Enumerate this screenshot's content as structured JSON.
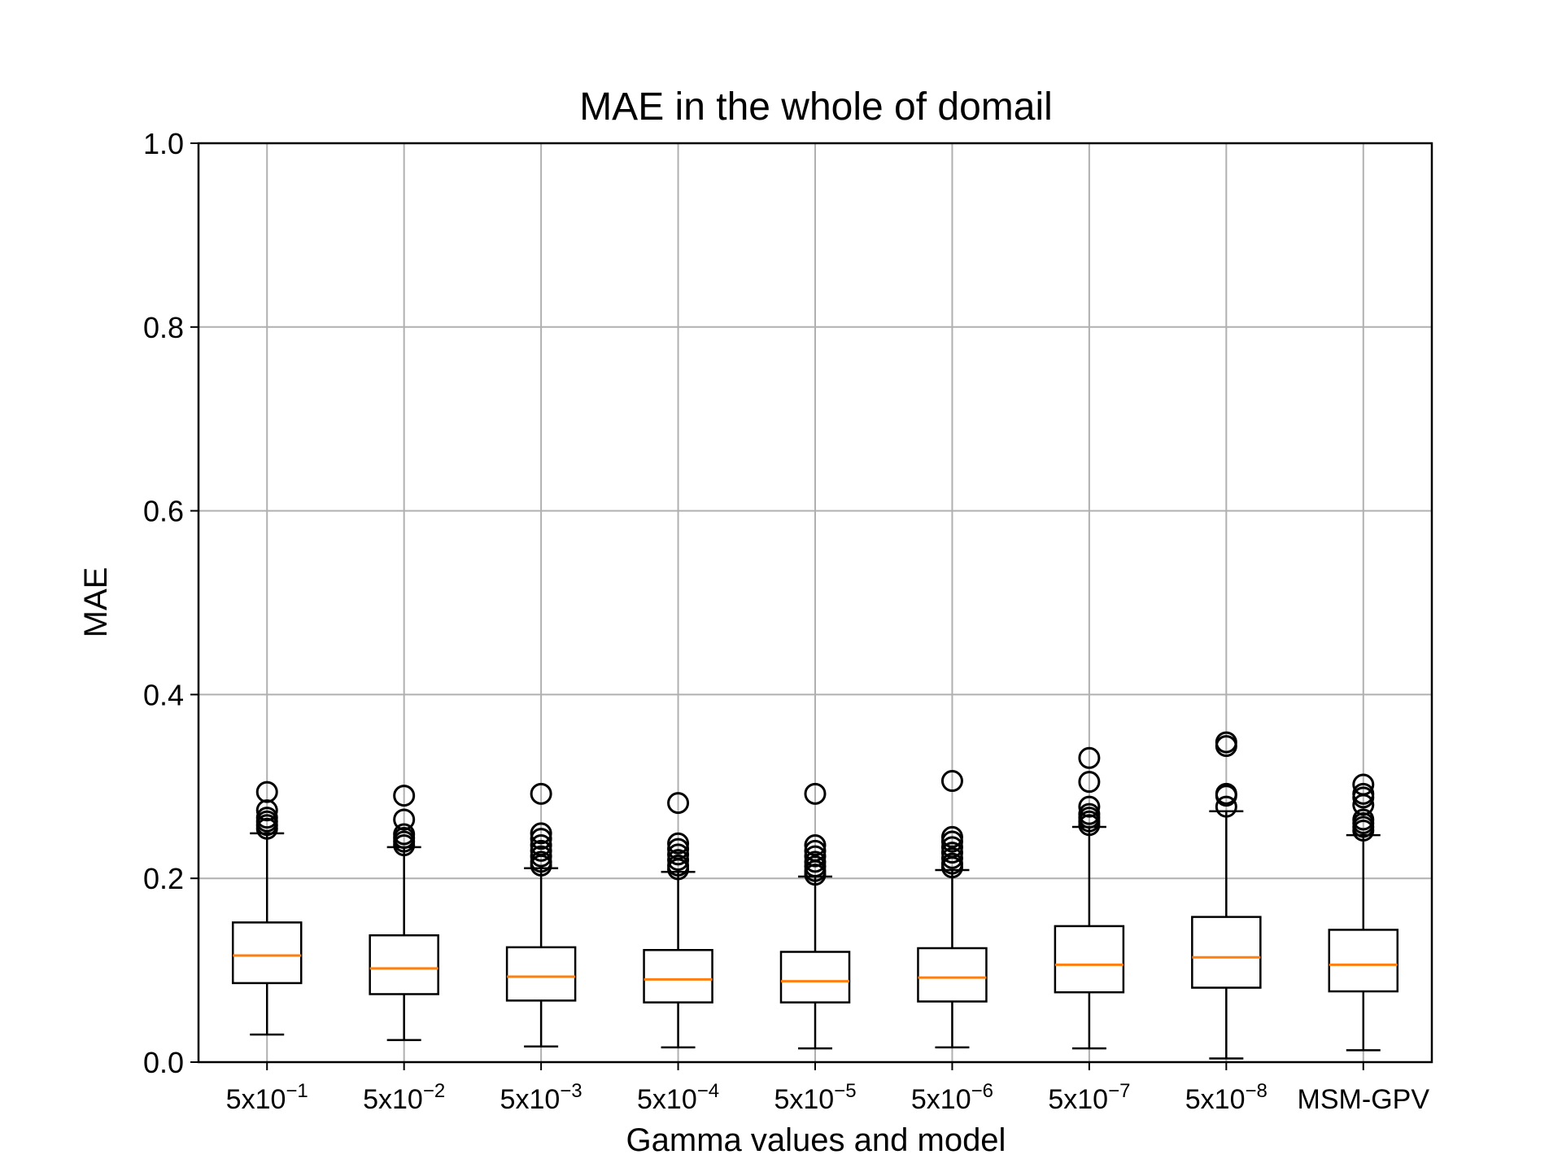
{
  "chart_data": {
    "type": "box",
    "title": "MAE in the whole of domail",
    "xlabel": "Gamma values and model",
    "ylabel": "MAE",
    "ylim": [
      0,
      1.0
    ],
    "yticks": [
      "0.0",
      "0.2",
      "0.4",
      "0.6",
      "0.8",
      "1.0"
    ],
    "grid": true,
    "legend": "none",
    "colors": {
      "box": "#000000",
      "median": "#ff7f0e",
      "grid": "#b0b0b0"
    },
    "categories": [
      {
        "label": "5x10",
        "exp": "−1"
      },
      {
        "label": "5x10",
        "exp": "−2"
      },
      {
        "label": "5x10",
        "exp": "−3"
      },
      {
        "label": "5x10",
        "exp": "−4"
      },
      {
        "label": "5x10",
        "exp": "−5"
      },
      {
        "label": "5x10",
        "exp": "−6"
      },
      {
        "label": "5x10",
        "exp": "−7"
      },
      {
        "label": "5x10",
        "exp": "−8"
      },
      {
        "label": "MSM-GPV",
        "exp": ""
      }
    ],
    "boxes": [
      {
        "whislo": 0.03,
        "q1": 0.086,
        "med": 0.116,
        "q3": 0.152,
        "whishi": 0.249,
        "fliers": [
          0.254,
          0.258,
          0.262,
          0.266,
          0.274,
          0.294
        ]
      },
      {
        "whislo": 0.024,
        "q1": 0.074,
        "med": 0.102,
        "q3": 0.138,
        "whishi": 0.234,
        "fliers": [
          0.236,
          0.24,
          0.244,
          0.248,
          0.264,
          0.29
        ]
      },
      {
        "whislo": 0.017,
        "q1": 0.067,
        "med": 0.093,
        "q3": 0.125,
        "whishi": 0.211,
        "fliers": [
          0.214,
          0.218,
          0.224,
          0.23,
          0.236,
          0.243,
          0.249,
          0.292
        ]
      },
      {
        "whislo": 0.016,
        "q1": 0.065,
        "med": 0.09,
        "q3": 0.122,
        "whishi": 0.207,
        "fliers": [
          0.21,
          0.214,
          0.22,
          0.226,
          0.232,
          0.238,
          0.282
        ]
      },
      {
        "whislo": 0.015,
        "q1": 0.065,
        "med": 0.088,
        "q3": 0.12,
        "whishi": 0.202,
        "fliers": [
          0.204,
          0.208,
          0.213,
          0.218,
          0.224,
          0.23,
          0.236,
          0.292
        ]
      },
      {
        "whislo": 0.016,
        "q1": 0.066,
        "med": 0.092,
        "q3": 0.124,
        "whishi": 0.209,
        "fliers": [
          0.212,
          0.216,
          0.222,
          0.228,
          0.234,
          0.24,
          0.245,
          0.306
        ]
      },
      {
        "whislo": 0.015,
        "q1": 0.076,
        "med": 0.106,
        "q3": 0.148,
        "whishi": 0.256,
        "fliers": [
          0.258,
          0.262,
          0.266,
          0.27,
          0.278,
          0.305,
          0.331
        ]
      },
      {
        "whislo": 0.004,
        "q1": 0.081,
        "med": 0.114,
        "q3": 0.158,
        "whishi": 0.273,
        "fliers": [
          0.278,
          0.29,
          0.292,
          0.344,
          0.348
        ]
      },
      {
        "whislo": 0.013,
        "q1": 0.077,
        "med": 0.106,
        "q3": 0.144,
        "whishi": 0.247,
        "fliers": [
          0.252,
          0.256,
          0.26,
          0.264,
          0.28,
          0.288,
          0.292,
          0.302
        ]
      }
    ]
  }
}
